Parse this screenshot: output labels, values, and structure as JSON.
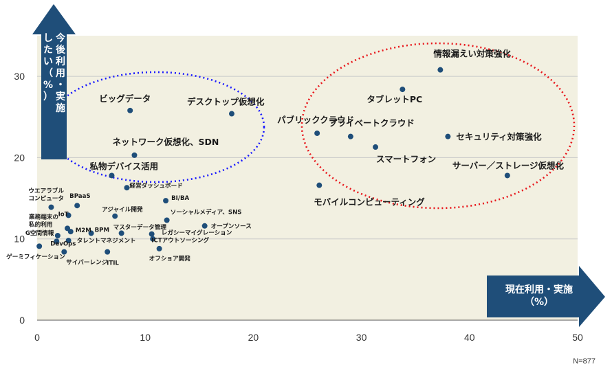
{
  "chart_data": {
    "type": "scatter",
    "xlabel": "現在利用・実施\n（%）",
    "ylabel": "今後利用・実施\nしたい（%）",
    "xlim": [
      0,
      50
    ],
    "ylim": [
      0,
      35
    ],
    "x_ticks": [
      "0",
      "10",
      "20",
      "30",
      "40",
      "50"
    ],
    "y_ticks": [
      "0",
      "10",
      "20",
      "30"
    ],
    "note": "N=877",
    "marker_color": "#1f4e79",
    "plot_bg": "#f2f0e1",
    "grid": "horizontal",
    "points": [
      {
        "label": "情報漏えい対策強化",
        "x": 37.3,
        "y": 30.8,
        "size": "big"
      },
      {
        "label": "タブレットPC",
        "x": 33.8,
        "y": 28.4,
        "size": "big"
      },
      {
        "label": "デスクトップ仮想化",
        "x": 18.0,
        "y": 25.4,
        "size": "big"
      },
      {
        "label": "ビッグデータ",
        "x": 8.6,
        "y": 25.8,
        "size": "big"
      },
      {
        "label": "パブリッククラウド",
        "x": 25.9,
        "y": 23.0,
        "size": "big"
      },
      {
        "label": "プライベートクラウド",
        "x": 29.0,
        "y": 22.6,
        "size": "big"
      },
      {
        "label": "セキュリティ対策強化",
        "x": 38.0,
        "y": 22.6,
        "size": "big"
      },
      {
        "label": "スマートフォン",
        "x": 31.3,
        "y": 21.3,
        "size": "big"
      },
      {
        "label": "ネットワーク仮想化、SDN",
        "x": 9.0,
        "y": 20.3,
        "size": "big"
      },
      {
        "label": "サーバー／ストレージ仮想化",
        "x": 43.5,
        "y": 17.8,
        "size": "big"
      },
      {
        "label": "私物デバイス活用",
        "x": 6.9,
        "y": 17.8,
        "size": "big"
      },
      {
        "label": "モバイルコンピューティング",
        "x": 26.1,
        "y": 16.6,
        "size": "big"
      },
      {
        "label": "経営ダッシュボード",
        "x": 8.3,
        "y": 16.3,
        "size": "small"
      },
      {
        "label": "BI/BA",
        "x": 11.9,
        "y": 14.7,
        "size": "small"
      },
      {
        "label": "ウエアラブル\nコンピュータ",
        "x": 1.3,
        "y": 13.9,
        "size": "small"
      },
      {
        "label": "BPaaS",
        "x": 3.7,
        "y": 14.1,
        "size": "small"
      },
      {
        "label": "IoT",
        "x": 2.9,
        "y": 12.9,
        "size": "small"
      },
      {
        "label": "アジャイル開発",
        "x": 7.2,
        "y": 12.8,
        "size": "small"
      },
      {
        "label": "ソーシャルメディア、SNS",
        "x": 12.0,
        "y": 12.3,
        "size": "small"
      },
      {
        "label": "オープンソース",
        "x": 15.5,
        "y": 11.6,
        "size": "small"
      },
      {
        "label": "業務端末の\n私的利用",
        "x": 2.8,
        "y": 11.3,
        "size": "small"
      },
      {
        "label": "M2M",
        "x": 3.1,
        "y": 10.9,
        "size": "small"
      },
      {
        "label": "BPM",
        "x": 5.0,
        "y": 10.7,
        "size": "small"
      },
      {
        "label": "マスターデータ管理",
        "x": 7.8,
        "y": 10.7,
        "size": "small"
      },
      {
        "label": "レガシーマイグレーション",
        "x": 10.6,
        "y": 10.6,
        "size": "small"
      },
      {
        "label": "G空間情報",
        "x": 1.9,
        "y": 10.4,
        "size": "small"
      },
      {
        "label": "タレントマネジメント",
        "x": 2.9,
        "y": 9.8,
        "size": "small"
      },
      {
        "label": "ICTアウトソーシング",
        "x": 10.7,
        "y": 10.0,
        "size": "small"
      },
      {
        "label": "DevOps",
        "x": 1.8,
        "y": 9.7,
        "size": "small"
      },
      {
        "label": "ゲーミフィケーション",
        "x": 0.2,
        "y": 9.1,
        "size": "small"
      },
      {
        "label": "オフショア開発",
        "x": 11.3,
        "y": 8.8,
        "size": "small"
      },
      {
        "label": "サイバーレンジ",
        "x": 2.5,
        "y": 8.4,
        "size": "small"
      },
      {
        "label": "ITIL",
        "x": 6.5,
        "y": 8.4,
        "size": "small"
      }
    ]
  }
}
